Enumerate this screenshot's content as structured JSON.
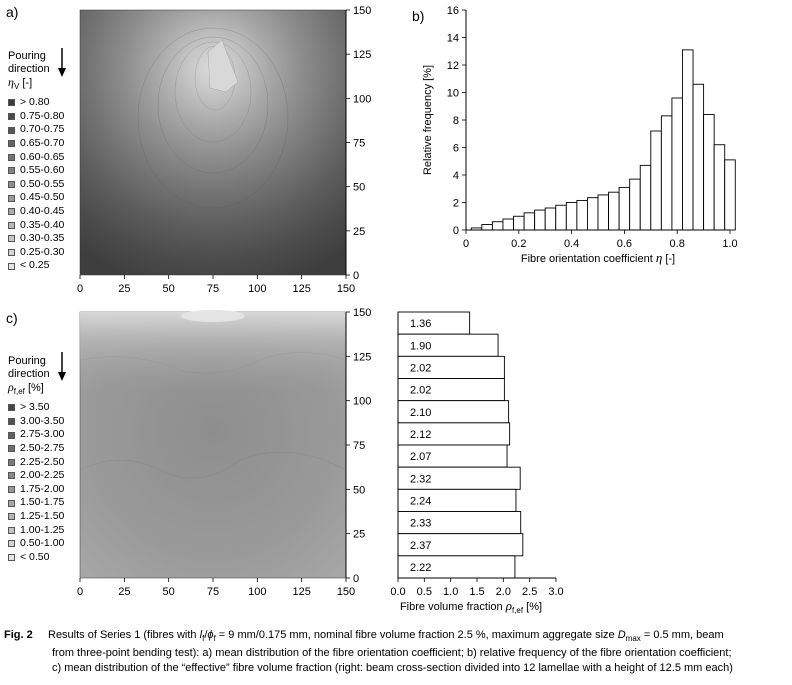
{
  "panels": {
    "a": {
      "label": "a)",
      "legend_title_1": "Pouring",
      "legend_title_2": "direction",
      "legend_symbol": "η",
      "legend_sub": "V",
      "legend_unit": " [-]",
      "legend_items": [
        "> 0.80",
        "0.75-0.80",
        "0.70-0.75",
        "0.65-0.70",
        "0.60-0.65",
        "0.55-0.60",
        "0.50-0.55",
        "0.45-0.50",
        "0.40-0.45",
        "0.35-0.40",
        "0.30-0.35",
        "0.25-0.30",
        "< 0.25"
      ],
      "legend_colors": [
        "#3a3a3a",
        "#484848",
        "#565656",
        "#646464",
        "#727272",
        "#808080",
        "#8e8e8e",
        "#9c9c9c",
        "#aaaaaa",
        "#b8b8b8",
        "#c6c6c6",
        "#d4d4d4",
        "#e4e4e4"
      ]
    },
    "b": {
      "label": "b)"
    },
    "c": {
      "label": "c)",
      "legend_title_1": "Pouring",
      "legend_title_2": "direction",
      "legend_symbol": "ρ",
      "legend_sub": "f,ef",
      "legend_unit": " [%]",
      "legend_items": [
        "> 3.50",
        "3.00-3.50",
        "2.75-3.00",
        "2.50-2.75",
        "2.25-2.50",
        "2.00-2.25",
        "1.75-2.00",
        "1.50-1.75",
        "1.25-1.50",
        "1.00-1.25",
        "0.50-1.00",
        "< 0.50"
      ],
      "legend_colors": [
        "#444444",
        "#525252",
        "#606060",
        "#6e6e6e",
        "#7c7c7c",
        "#8a8a8a",
        "#989898",
        "#a6a6a6",
        "#b4b4b4",
        "#c4c4c4",
        "#d4d4d4",
        "#e6e6e6"
      ]
    }
  },
  "chart_data": [
    {
      "id": "a",
      "type": "heatmap",
      "x_ticks": [
        0,
        25,
        50,
        75,
        100,
        125,
        150
      ],
      "y_ticks": [
        0,
        25,
        50,
        75,
        100,
        125,
        150
      ],
      "xlim": [
        0,
        150
      ],
      "ylim": [
        0,
        150
      ],
      "description_levels": "contour map of mean fibre orientation coefficient; highest (>0.80) near x≈75, y≈120, decreasing outward"
    },
    {
      "id": "b",
      "type": "bar",
      "bin_width": 0.04,
      "bin_starts": [
        0.02,
        0.06,
        0.1,
        0.14,
        0.18,
        0.22,
        0.26,
        0.3,
        0.34,
        0.38,
        0.42,
        0.46,
        0.5,
        0.54,
        0.58,
        0.62,
        0.66,
        0.7,
        0.74,
        0.78,
        0.82,
        0.86,
        0.9,
        0.94,
        0.98
      ],
      "values": [
        0.15,
        0.4,
        0.6,
        0.8,
        1.0,
        1.25,
        1.45,
        1.6,
        1.8,
        2.0,
        2.15,
        2.35,
        2.55,
        2.75,
        3.1,
        3.7,
        4.7,
        7.2,
        8.3,
        9.6,
        13.1,
        10.6,
        8.4,
        6.2,
        5.1
      ],
      "xlabel": "Fibre orientation coefficient",
      "xlabel_symbol": "η",
      "xlabel_unit": " [-]",
      "ylabel": "Relative frequency [%]",
      "xlim": [
        0,
        1.0
      ],
      "ylim": [
        0,
        16
      ],
      "x_ticks": [
        "0",
        "0.2",
        "0.4",
        "0.6",
        "0.8",
        "1.0"
      ],
      "y_ticks": [
        "0",
        "2",
        "4",
        "6",
        "8",
        "10",
        "12",
        "14",
        "16"
      ]
    },
    {
      "id": "c",
      "type": "heatmap",
      "x_ticks": [
        0,
        25,
        50,
        75,
        100,
        125,
        150
      ],
      "y_ticks": [
        0,
        25,
        50,
        75,
        100,
        125,
        150
      ],
      "xlim": [
        0,
        150
      ],
      "ylim": [
        0,
        150
      ]
    },
    {
      "id": "c-right",
      "type": "bar",
      "orientation": "horizontal",
      "values": [
        1.36,
        1.9,
        2.02,
        2.02,
        2.1,
        2.12,
        2.07,
        2.32,
        2.24,
        2.33,
        2.37,
        2.22
      ],
      "labels": [
        "1.36",
        "1.90",
        "2.02",
        "2.02",
        "2.10",
        "2.12",
        "2.07",
        "2.32",
        "2.24",
        "2.33",
        "2.37",
        "2.22"
      ],
      "xlim": [
        0,
        3.0
      ],
      "x_ticks": [
        "0.0",
        "0.5",
        "1.0",
        "1.5",
        "2.0",
        "2.5",
        "3.0"
      ],
      "xlabel": "Fibre volume fraction",
      "xlabel_symbol": "ρ",
      "xlabel_sub": "f,ef",
      "xlabel_unit": " [%]"
    }
  ],
  "caption": {
    "fig_label": "Fig. 2",
    "line1a": "Results of Series 1 (fibres with ",
    "line1b": "l",
    "line1c": "f",
    "line1d": "/",
    "line1e": "ϕ",
    "line1f": "f",
    "line1g": " = 9 mm/0.175 mm, nominal fibre volume fraction 2.5 %, maximum aggregate size ",
    "line1h": "D",
    "line1i": "max",
    "line1j": " = 0.5 mm, beam",
    "line2": "from three-point bending test): a) mean distribution of the fibre orientation coefficient; b) relative frequency of the fibre orientation coefficient;",
    "line3": "c) mean distribution of the “effective” fibre volume fraction (right: beam cross-section divided into 12 lamellae with a height of 12.5 mm each)"
  }
}
